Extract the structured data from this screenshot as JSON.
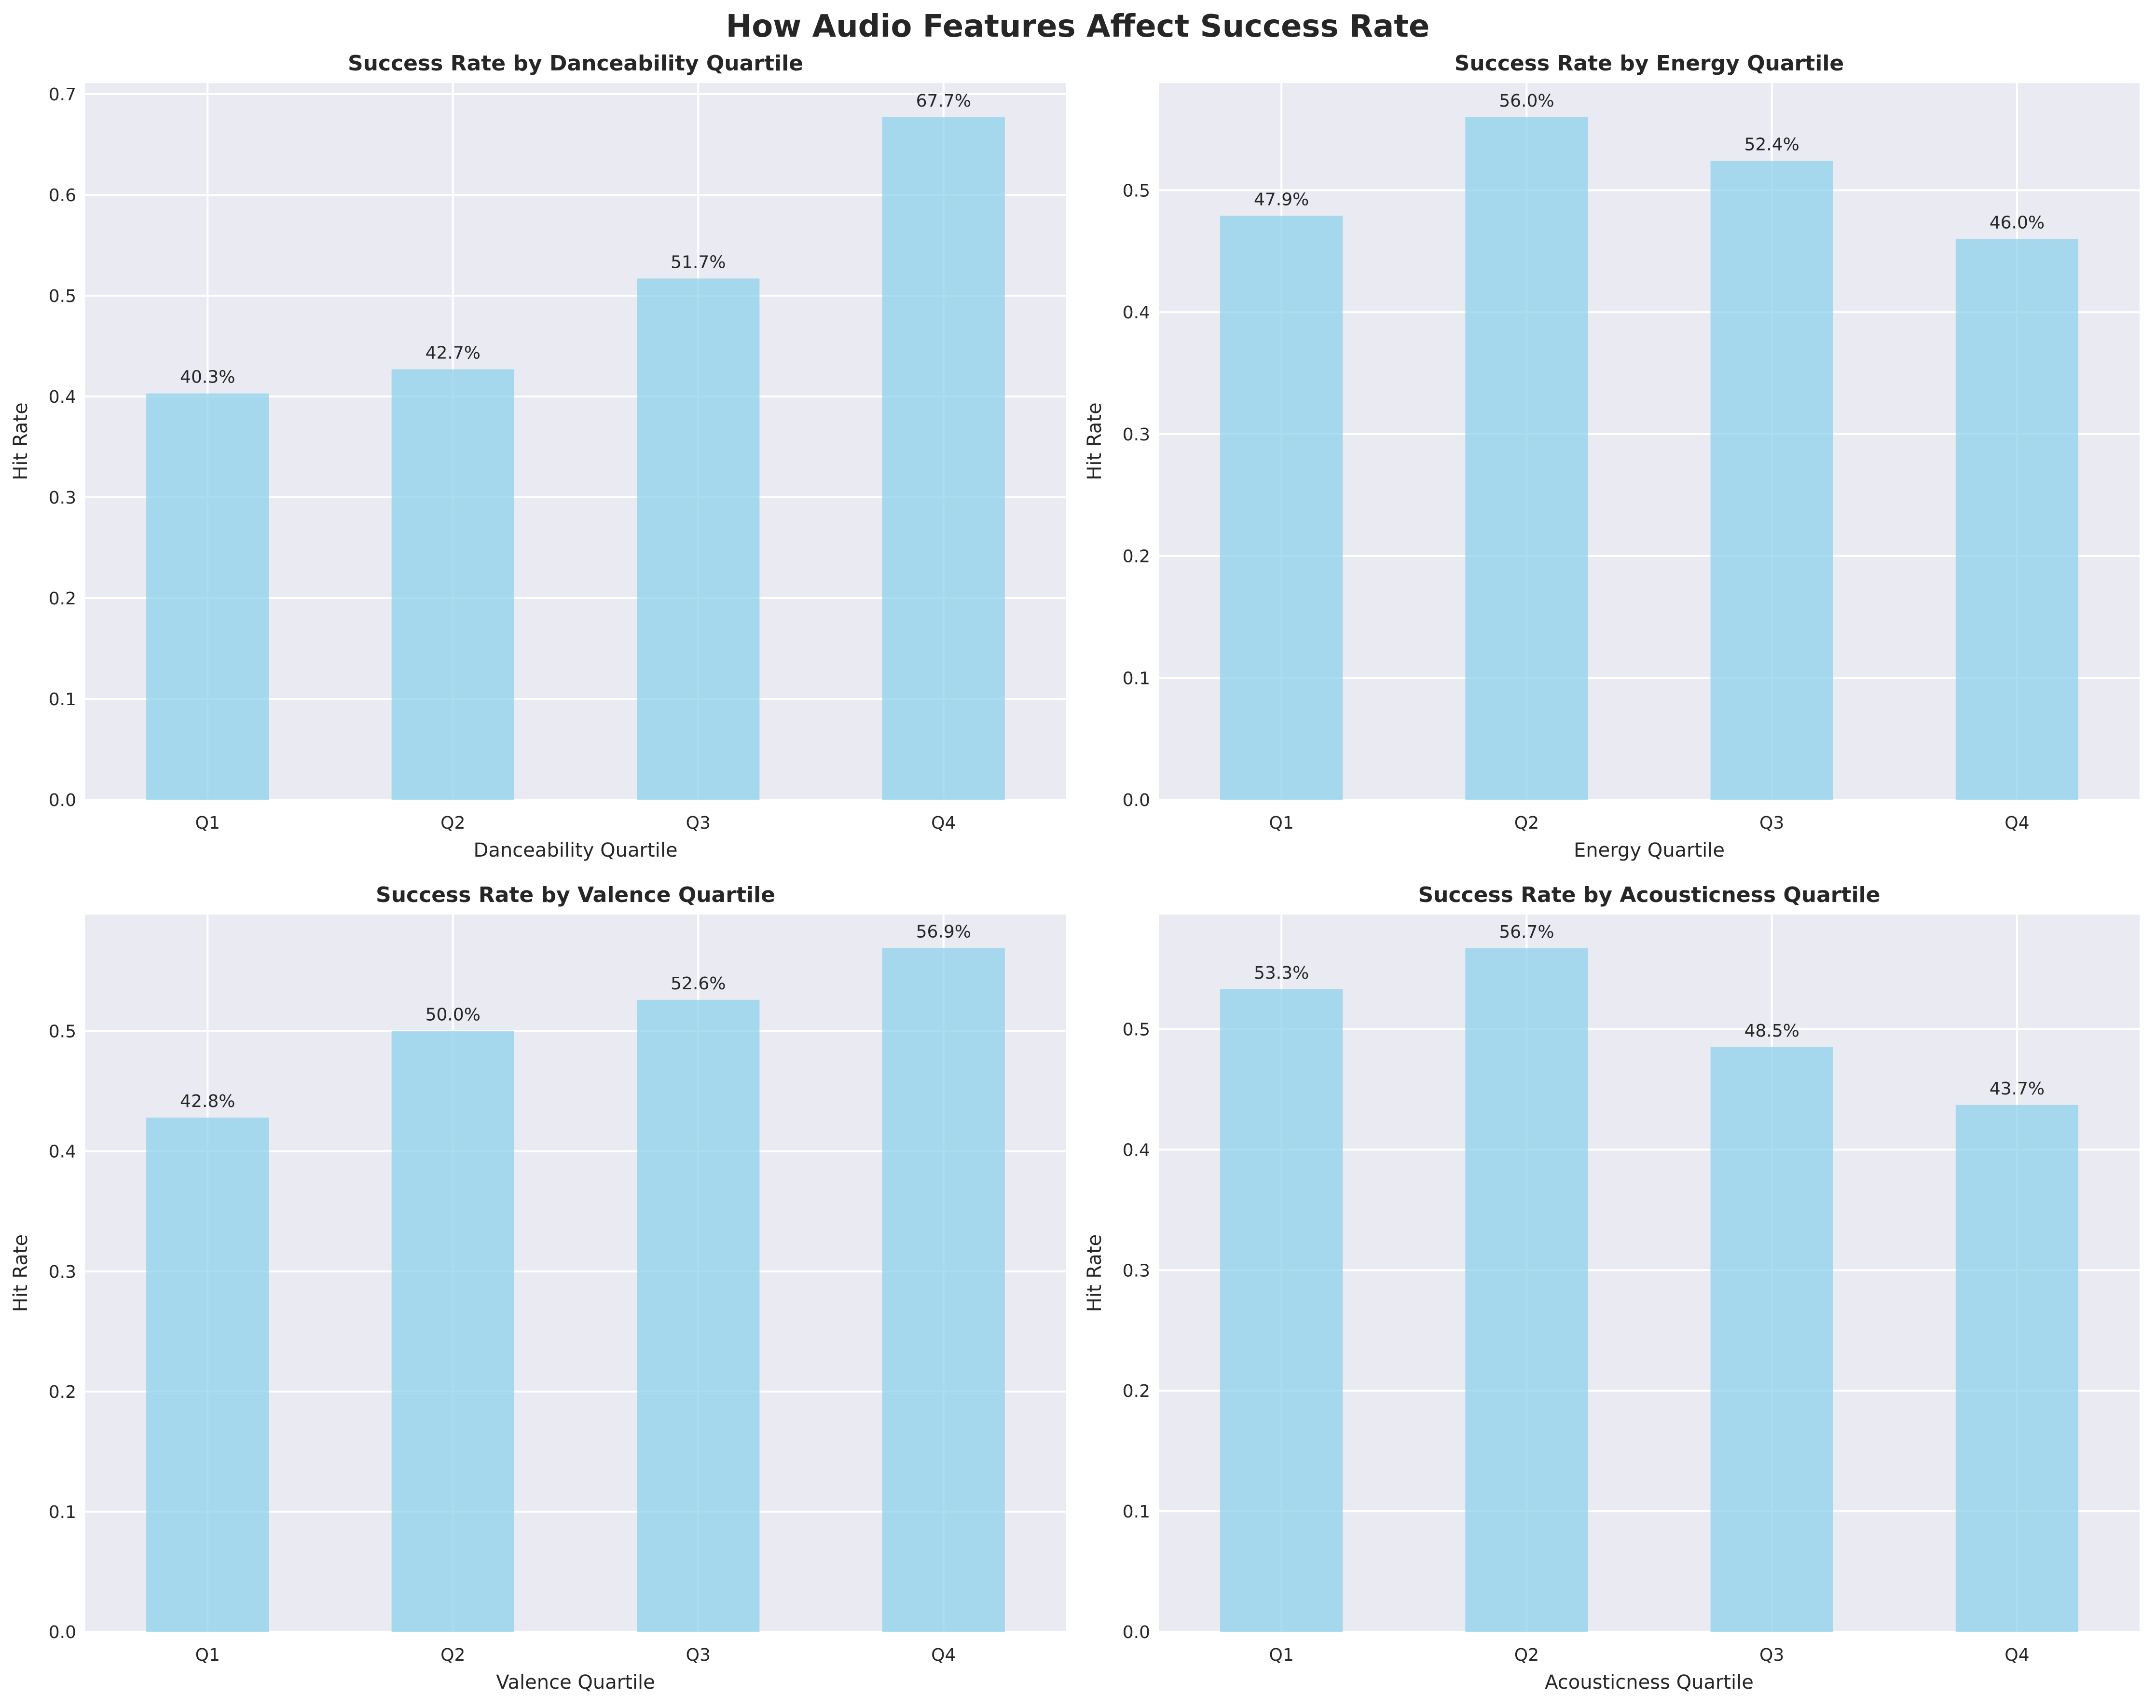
{
  "figure": {
    "title": "How Audio Features Affect Success Rate"
  },
  "style": {
    "axes_bg": "#eaeaf2",
    "grid": "#ffffff",
    "bar_color": "#87ceeb",
    "bar_opacity": 0.7,
    "text_color": "#262626"
  },
  "chart_data": [
    {
      "type": "bar",
      "title": "Success Rate by Danceability Quartile",
      "xlabel": "Danceability Quartile",
      "ylabel": "Hit Rate",
      "categories": [
        "Q1",
        "Q2",
        "Q3",
        "Q4"
      ],
      "values": [
        0.403,
        0.427,
        0.517,
        0.677
      ],
      "value_labels": [
        "40.3%",
        "42.7%",
        "51.7%",
        "67.7%"
      ],
      "ylim": [
        0,
        0.711
      ],
      "yticks": [
        0.0,
        0.1,
        0.2,
        0.3,
        0.4,
        0.5,
        0.6,
        0.7
      ],
      "ytick_labels": [
        "0.0",
        "0.1",
        "0.2",
        "0.3",
        "0.4",
        "0.5",
        "0.6",
        "0.7"
      ],
      "grid": true
    },
    {
      "type": "bar",
      "title": "Success Rate by Energy Quartile",
      "xlabel": "Energy Quartile",
      "ylabel": "Hit Rate",
      "categories": [
        "Q1",
        "Q2",
        "Q3",
        "Q4"
      ],
      "values": [
        0.479,
        0.56,
        0.524,
        0.46
      ],
      "value_labels": [
        "47.9%",
        "56.0%",
        "52.4%",
        "46.0%"
      ],
      "ylim": [
        0,
        0.588
      ],
      "yticks": [
        0.0,
        0.1,
        0.2,
        0.3,
        0.4,
        0.5
      ],
      "ytick_labels": [
        "0.0",
        "0.1",
        "0.2",
        "0.3",
        "0.4",
        "0.5"
      ],
      "grid": true
    },
    {
      "type": "bar",
      "title": "Success Rate by Valence Quartile",
      "xlabel": "Valence Quartile",
      "ylabel": "Hit Rate",
      "categories": [
        "Q1",
        "Q2",
        "Q3",
        "Q4"
      ],
      "values": [
        0.428,
        0.5,
        0.526,
        0.569
      ],
      "value_labels": [
        "42.8%",
        "50.0%",
        "52.6%",
        "56.9%"
      ],
      "ylim": [
        0,
        0.597
      ],
      "yticks": [
        0.0,
        0.1,
        0.2,
        0.3,
        0.4,
        0.5
      ],
      "ytick_labels": [
        "0.0",
        "0.1",
        "0.2",
        "0.3",
        "0.4",
        "0.5"
      ],
      "grid": true
    },
    {
      "type": "bar",
      "title": "Success Rate by Acousticness Quartile",
      "xlabel": "Acousticness Quartile",
      "ylabel": "Hit Rate",
      "categories": [
        "Q1",
        "Q2",
        "Q3",
        "Q4"
      ],
      "values": [
        0.533,
        0.567,
        0.485,
        0.437
      ],
      "value_labels": [
        "53.3%",
        "56.7%",
        "48.5%",
        "43.7%"
      ],
      "ylim": [
        0,
        0.595
      ],
      "yticks": [
        0.0,
        0.1,
        0.2,
        0.3,
        0.4,
        0.5
      ],
      "ytick_labels": [
        "0.0",
        "0.1",
        "0.2",
        "0.3",
        "0.4",
        "0.5"
      ],
      "grid": true
    }
  ]
}
